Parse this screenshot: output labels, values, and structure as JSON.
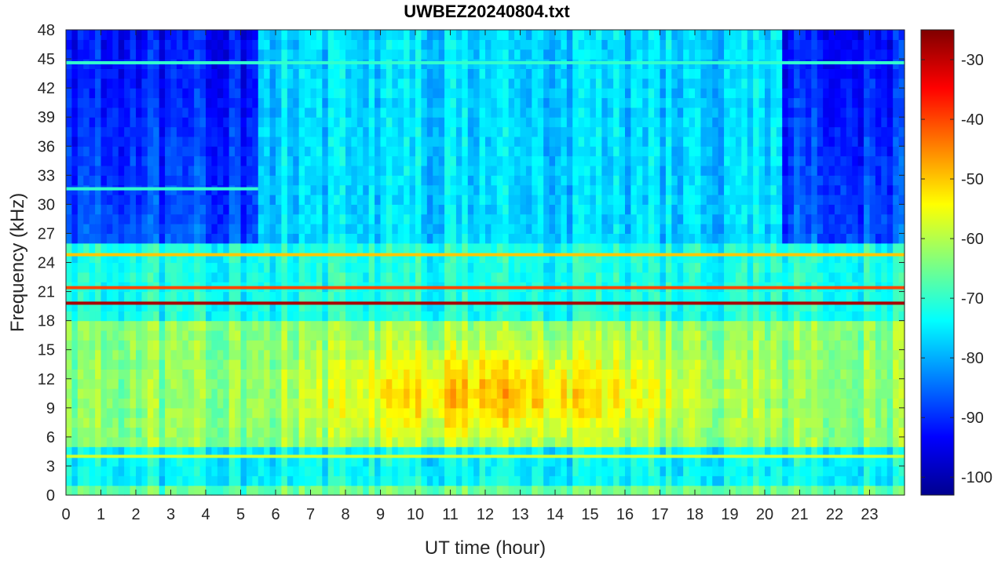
{
  "chart_data": {
    "type": "heatmap",
    "title": "UWBEZ20240804.txt",
    "xlabel": "UT time (hour)",
    "ylabel": "Frequency (kHz)",
    "xlim": [
      0,
      24
    ],
    "ylim": [
      0,
      48
    ],
    "x_ticks": [
      "0",
      "1",
      "2",
      "3",
      "4",
      "5",
      "6",
      "7",
      "8",
      "9",
      "10",
      "11",
      "12",
      "13",
      "14",
      "15",
      "16",
      "17",
      "18",
      "19",
      "20",
      "21",
      "22",
      "23"
    ],
    "y_ticks": [
      "0",
      "3",
      "6",
      "9",
      "12",
      "15",
      "18",
      "21",
      "24",
      "27",
      "30",
      "33",
      "36",
      "39",
      "42",
      "45",
      "48"
    ],
    "colorbar": {
      "colormap": "jet",
      "range": [
        -103,
        -25
      ],
      "ticks": [
        "-30",
        "-40",
        "-50",
        "-60",
        "-70",
        "-80",
        "-90",
        "-100"
      ]
    },
    "features": [
      {
        "description_level_dB": -28,
        "frequency_kHz": 19.8,
        "time_hours": [
          0,
          24
        ]
      },
      {
        "description_level_dB": -40,
        "frequency_kHz": 21.4,
        "time_hours": [
          0,
          24
        ]
      },
      {
        "description_level_dB": -50,
        "frequency_kHz": 24.8,
        "time_hours": [
          0,
          24
        ]
      },
      {
        "description_level_dB": -58,
        "frequency_kHz": 4.0,
        "time_hours": [
          0,
          24
        ]
      },
      {
        "description_level_dB": -70,
        "frequency_kHz": 44.6,
        "time_hours": [
          0,
          24
        ]
      },
      {
        "description_level_dB": -70,
        "frequency_kHz": 31.6,
        "time_hours": [
          0,
          5.5
        ]
      }
    ],
    "grid": false
  }
}
